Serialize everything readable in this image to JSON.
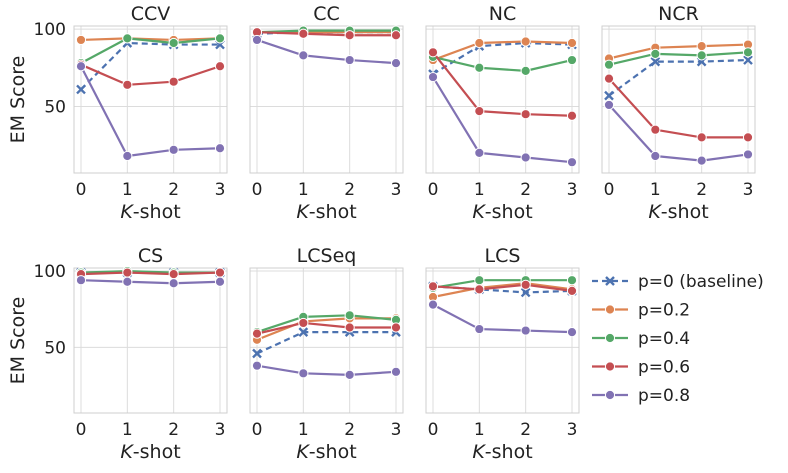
{
  "chart_data": {
    "type": "line",
    "ylabel": "EM Score",
    "xlabel_italic": "K",
    "xlabel_suffix": "-shot",
    "x": [
      0,
      1,
      2,
      3
    ],
    "ylim": [
      7,
      102
    ],
    "yticks": [
      50,
      100
    ],
    "series_styles": [
      {
        "name": "p=0 (baseline)",
        "color": "#4c72b0",
        "dashed": true,
        "marker": "x"
      },
      {
        "name": "p=0.2",
        "color": "#dd8452",
        "dashed": false,
        "marker": "o"
      },
      {
        "name": "p=0.4",
        "color": "#55a868",
        "dashed": false,
        "marker": "o"
      },
      {
        "name": "p=0.6",
        "color": "#c44e52",
        "dashed": false,
        "marker": "o"
      },
      {
        "name": "p=0.8",
        "color": "#8172b3",
        "dashed": false,
        "marker": "o"
      }
    ],
    "panels": [
      {
        "title": "CCV",
        "series": [
          [
            61,
            91,
            90,
            90
          ],
          [
            93,
            94,
            93,
            94
          ],
          [
            78,
            94,
            91,
            94
          ],
          [
            77,
            64,
            66,
            76
          ],
          [
            76,
            18,
            22,
            23
          ]
        ]
      },
      {
        "title": "CC",
        "series": [
          [
            97,
            98,
            98,
            98
          ],
          [
            98,
            98,
            98,
            98
          ],
          [
            98,
            99,
            99,
            99
          ],
          [
            98,
            97,
            96,
            96
          ],
          [
            93,
            83,
            80,
            78
          ]
        ]
      },
      {
        "title": "NC",
        "series": [
          [
            71,
            89,
            91,
            90
          ],
          [
            80,
            91,
            92,
            91
          ],
          [
            82,
            75,
            73,
            80
          ],
          [
            85,
            47,
            45,
            44
          ],
          [
            69,
            20,
            17,
            14
          ]
        ]
      },
      {
        "title": "NCR",
        "series": [
          [
            57,
            79,
            79,
            80
          ],
          [
            81,
            88,
            89,
            90
          ],
          [
            77,
            84,
            83,
            85
          ],
          [
            68,
            35,
            30,
            30
          ],
          [
            51,
            18,
            15,
            19
          ]
        ]
      },
      {
        "title": "CS",
        "series": [
          [
            99,
            99,
            99,
            99
          ],
          [
            99,
            99,
            99,
            99
          ],
          [
            99,
            100,
            99,
            99
          ],
          [
            98,
            99,
            98,
            99
          ],
          [
            94,
            93,
            92,
            93
          ]
        ]
      },
      {
        "title": "LCSeq",
        "series": [
          [
            46,
            60,
            60,
            60
          ],
          [
            55,
            67,
            69,
            69
          ],
          [
            60,
            70,
            71,
            68
          ],
          [
            59,
            66,
            63,
            63
          ],
          [
            38,
            33,
            32,
            34
          ]
        ]
      },
      {
        "title": "LCS",
        "series": [
          [
            90,
            88,
            86,
            87
          ],
          [
            83,
            89,
            92,
            88
          ],
          [
            89,
            94,
            94,
            94
          ],
          [
            90,
            88,
            91,
            87
          ],
          [
            78,
            62,
            61,
            60
          ]
        ]
      }
    ]
  }
}
